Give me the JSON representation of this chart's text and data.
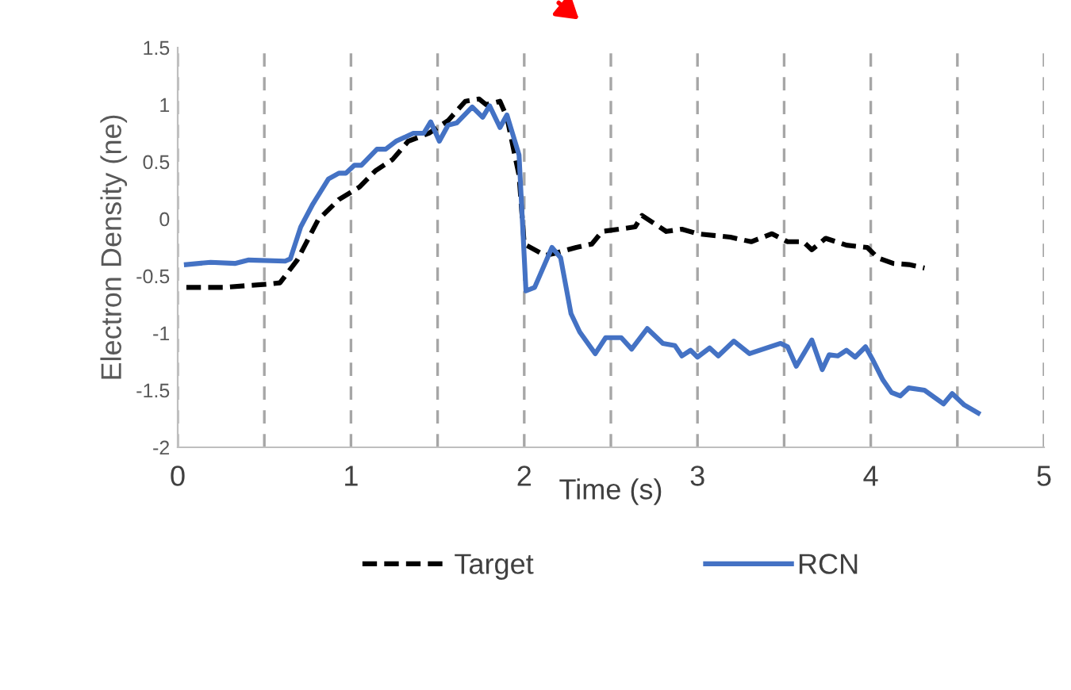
{
  "chart_data": {
    "type": "line",
    "xlabel": "Time (s)",
    "ylabel": "Electron Density (ne)",
    "xlim": [
      0,
      5
    ],
    "ylim": [
      -2,
      1.5
    ],
    "xticks": [
      0,
      {
        "value": 0.5,
        "label": null
      },
      1,
      {
        "value": 1.5,
        "label": null
      },
      2,
      {
        "value": 2.5,
        "label": null
      },
      3,
      {
        "value": 3.5,
        "label": null
      },
      4,
      {
        "value": 4.5,
        "label": null
      },
      5
    ],
    "yticks": [
      -2,
      -1.5,
      -1,
      -0.5,
      0,
      0.5,
      1,
      1.5
    ],
    "grid": "x",
    "legend": "bottom",
    "series": [
      {
        "name": "Target",
        "color": "#000000",
        "line_style": "dashed",
        "x": [
          0.05,
          0.26,
          0.53,
          0.59,
          0.69,
          0.81,
          0.93,
          1.05,
          1.14,
          1.24,
          1.33,
          1.45,
          1.56,
          1.66,
          1.74,
          1.78,
          1.86,
          1.9,
          1.97,
          2.0,
          2.12,
          2.18,
          2.3,
          2.39,
          2.45,
          2.64,
          2.68,
          2.82,
          2.91,
          3.0,
          3.19,
          3.31,
          3.43,
          3.52,
          3.61,
          3.66,
          3.74,
          3.86,
          3.98,
          4.04,
          4.13,
          4.22,
          4.31
        ],
        "values": [
          -0.6,
          -0.6,
          -0.57,
          -0.56,
          -0.36,
          -0.01,
          0.17,
          0.28,
          0.42,
          0.52,
          0.68,
          0.75,
          0.86,
          1.03,
          1.05,
          1.0,
          1.03,
          0.89,
          0.38,
          -0.22,
          -0.32,
          -0.3,
          -0.25,
          -0.22,
          -0.11,
          -0.07,
          0.03,
          -0.11,
          -0.09,
          -0.13,
          -0.16,
          -0.2,
          -0.13,
          -0.2,
          -0.2,
          -0.27,
          -0.17,
          -0.23,
          -0.25,
          -0.34,
          -0.39,
          -0.4,
          -0.43
        ]
      },
      {
        "name": "RCN",
        "color": "#4472c4",
        "line_style": "solid",
        "x": [
          0.05,
          0.19,
          0.33,
          0.41,
          0.62,
          0.65,
          0.71,
          0.78,
          0.87,
          0.93,
          0.97,
          1.02,
          1.06,
          1.15,
          1.2,
          1.26,
          1.36,
          1.42,
          1.46,
          1.51,
          1.56,
          1.61,
          1.7,
          1.76,
          1.8,
          1.86,
          1.9,
          1.97,
          2.01,
          2.06,
          2.16,
          2.21,
          2.27,
          2.32,
          2.41,
          2.47,
          2.56,
          2.62,
          2.71,
          2.8,
          2.87,
          2.91,
          2.96,
          3.0,
          3.07,
          3.12,
          3.21,
          3.3,
          3.4,
          3.48,
          3.52,
          3.57,
          3.66,
          3.72,
          3.76,
          3.81,
          3.86,
          3.91,
          3.97,
          4.01,
          4.07,
          4.12,
          4.17,
          4.22,
          4.31,
          4.42,
          4.47,
          4.54,
          4.62
        ],
        "values": [
          -0.4,
          -0.38,
          -0.39,
          -0.36,
          -0.37,
          -0.35,
          -0.07,
          0.13,
          0.35,
          0.4,
          0.4,
          0.47,
          0.47,
          0.61,
          0.61,
          0.68,
          0.75,
          0.75,
          0.85,
          0.68,
          0.82,
          0.84,
          0.98,
          0.89,
          0.99,
          0.8,
          0.91,
          0.56,
          -0.63,
          -0.6,
          -0.25,
          -0.34,
          -0.83,
          -0.99,
          -1.18,
          -1.04,
          -1.04,
          -1.14,
          -0.96,
          -1.09,
          -1.11,
          -1.2,
          -1.15,
          -1.21,
          -1.13,
          -1.2,
          -1.07,
          -1.18,
          -1.13,
          -1.09,
          -1.12,
          -1.29,
          -1.06,
          -1.32,
          -1.19,
          -1.2,
          -1.15,
          -1.21,
          -1.12,
          -1.23,
          -1.41,
          -1.52,
          -1.55,
          -1.48,
          -1.5,
          -1.62,
          -1.53,
          -1.63,
          -1.7
        ]
      }
    ]
  }
}
